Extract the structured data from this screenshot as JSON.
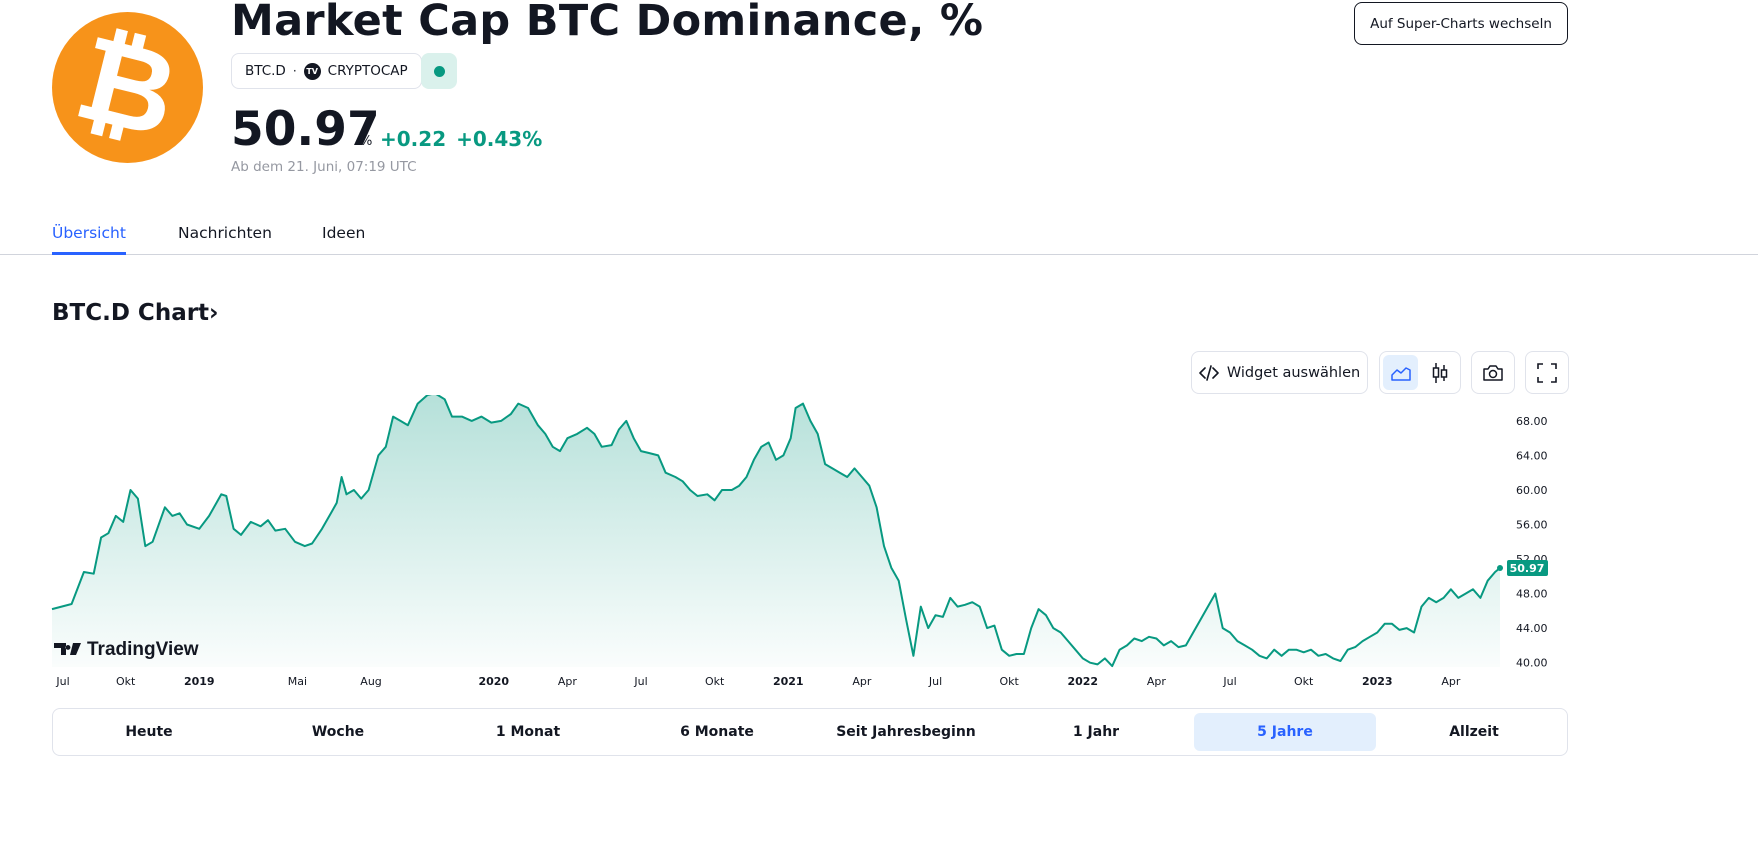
{
  "header": {
    "logo_glyph": "₿",
    "title": "Market Cap BTC Dominance, %",
    "symbol": "BTC.D",
    "separator": "·",
    "exchange_logo": "TV",
    "exchange": "CRYPTOCAP",
    "price": "50.97",
    "unit": "%",
    "change_abs": "+0.22",
    "change_pct": "+0.43%",
    "as_of": "Ab dem 21. Juni, 07:19 UTC",
    "super_charts_label": "Auf Super-Charts wechseln"
  },
  "tabs": [
    {
      "label": "Übersicht",
      "active": true
    },
    {
      "label": "Nachrichten",
      "active": false
    },
    {
      "label": "Ideen",
      "active": false
    }
  ],
  "chart_section": {
    "heading": "BTC.D Chart›",
    "widget_label": "Widget auswählen",
    "icons": [
      "code-icon",
      "area-chart-icon",
      "candlestick-icon",
      "camera-icon",
      "fullscreen-icon"
    ]
  },
  "chart_data": {
    "type": "area",
    "title": "",
    "xlabel": "",
    "ylabel": "",
    "ylim": [
      39.5,
      71
    ],
    "grid": false,
    "brand_logo_text": "TradingView",
    "line_color": "#089981",
    "fill_color": "#089981",
    "last_value_label": "50.97",
    "y_ticks": [
      "68.00",
      "64.00",
      "60.00",
      "56.00",
      "52.00",
      "48.00",
      "44.00",
      "40.00"
    ],
    "x_ticks": [
      "Jul",
      "Okt",
      "2019",
      "Mai",
      "Aug",
      "2020",
      "Apr",
      "Jul",
      "Okt",
      "2021",
      "Apr",
      "Jul",
      "Okt",
      "2022",
      "Apr",
      "Jul",
      "Okt",
      "2023",
      "Apr"
    ],
    "x_tick_months": [
      0,
      3,
      6,
      10,
      13,
      18,
      21,
      24,
      27,
      30,
      33,
      36,
      39,
      42,
      45,
      48,
      51,
      54,
      57
    ],
    "x_unit": "months since Jul 2018",
    "series": [
      {
        "values": [
          [
            0,
            46.2
          ],
          [
            0.8,
            46.8
          ],
          [
            1.3,
            50.5
          ],
          [
            1.7,
            50.3
          ],
          [
            2.0,
            54.5
          ],
          [
            2.3,
            55.0
          ],
          [
            2.6,
            57.0
          ],
          [
            2.9,
            56.3
          ],
          [
            3.2,
            60.0
          ],
          [
            3.5,
            59.0
          ],
          [
            3.8,
            53.5
          ],
          [
            4.1,
            54.0
          ],
          [
            4.6,
            58.0
          ],
          [
            4.9,
            57.0
          ],
          [
            5.2,
            57.3
          ],
          [
            5.5,
            56.0
          ],
          [
            6.0,
            55.5
          ],
          [
            6.4,
            57.0
          ],
          [
            6.9,
            59.5
          ],
          [
            7.1,
            59.3
          ],
          [
            7.4,
            55.5
          ],
          [
            7.7,
            54.8
          ],
          [
            8.1,
            56.3
          ],
          [
            8.5,
            55.8
          ],
          [
            8.8,
            56.5
          ],
          [
            9.1,
            55.3
          ],
          [
            9.5,
            55.5
          ],
          [
            9.9,
            54.0
          ],
          [
            10.3,
            53.5
          ],
          [
            10.6,
            53.8
          ],
          [
            11.0,
            55.5
          ],
          [
            11.4,
            57.5
          ],
          [
            11.6,
            58.5
          ],
          [
            11.8,
            61.5
          ],
          [
            12.0,
            59.5
          ],
          [
            12.3,
            60.0
          ],
          [
            12.6,
            59.0
          ],
          [
            12.9,
            60.0
          ],
          [
            13.3,
            64.0
          ],
          [
            13.6,
            65.0
          ],
          [
            13.9,
            68.5
          ],
          [
            14.2,
            68.0
          ],
          [
            14.5,
            67.5
          ],
          [
            14.9,
            70.0
          ],
          [
            15.3,
            71.0
          ],
          [
            15.6,
            71.2
          ],
          [
            16.0,
            70.5
          ],
          [
            16.3,
            68.5
          ],
          [
            16.7,
            68.5
          ],
          [
            17.1,
            68.0
          ],
          [
            17.5,
            68.5
          ],
          [
            17.9,
            67.8
          ],
          [
            18.3,
            68.0
          ],
          [
            18.7,
            68.8
          ],
          [
            19.0,
            70.0
          ],
          [
            19.4,
            69.5
          ],
          [
            19.8,
            67.5
          ],
          [
            20.1,
            66.5
          ],
          [
            20.4,
            65.0
          ],
          [
            20.7,
            64.5
          ],
          [
            21.0,
            66.0
          ],
          [
            21.4,
            66.5
          ],
          [
            21.8,
            67.2
          ],
          [
            22.1,
            66.5
          ],
          [
            22.4,
            65.0
          ],
          [
            22.8,
            65.2
          ],
          [
            23.1,
            67.0
          ],
          [
            23.4,
            68.0
          ],
          [
            23.7,
            66.0
          ],
          [
            24.0,
            64.5
          ],
          [
            24.3,
            64.3
          ],
          [
            24.7,
            64.0
          ],
          [
            25.0,
            62.0
          ],
          [
            25.4,
            61.5
          ],
          [
            25.7,
            61.0
          ],
          [
            26.0,
            60.0
          ],
          [
            26.3,
            59.3
          ],
          [
            26.7,
            59.5
          ],
          [
            27.0,
            58.8
          ],
          [
            27.3,
            60.0
          ],
          [
            27.7,
            60.0
          ],
          [
            28.0,
            60.5
          ],
          [
            28.3,
            61.5
          ],
          [
            28.6,
            63.5
          ],
          [
            28.9,
            65.0
          ],
          [
            29.2,
            65.5
          ],
          [
            29.5,
            63.5
          ],
          [
            29.8,
            64.0
          ],
          [
            30.1,
            66.0
          ],
          [
            30.3,
            69.5
          ],
          [
            30.6,
            70.0
          ],
          [
            30.9,
            68.0
          ],
          [
            31.2,
            66.5
          ],
          [
            31.5,
            63.0
          ],
          [
            31.8,
            62.5
          ],
          [
            32.1,
            62.0
          ],
          [
            32.4,
            61.5
          ],
          [
            32.7,
            62.5
          ],
          [
            33.0,
            61.5
          ],
          [
            33.3,
            60.5
          ],
          [
            33.6,
            58.0
          ],
          [
            33.9,
            53.5
          ],
          [
            34.2,
            51.0
          ],
          [
            34.5,
            49.5
          ],
          [
            34.8,
            45.0
          ],
          [
            35.1,
            40.8
          ],
          [
            35.4,
            46.5
          ],
          [
            35.7,
            44.0
          ],
          [
            36.0,
            45.5
          ],
          [
            36.3,
            45.3
          ],
          [
            36.6,
            47.5
          ],
          [
            36.9,
            46.5
          ],
          [
            37.2,
            46.7
          ],
          [
            37.5,
            47.0
          ],
          [
            37.8,
            46.5
          ],
          [
            38.1,
            44.0
          ],
          [
            38.4,
            44.3
          ],
          [
            38.7,
            41.5
          ],
          [
            39.0,
            40.8
          ],
          [
            39.3,
            41.0
          ],
          [
            39.6,
            41.0
          ],
          [
            39.9,
            44.0
          ],
          [
            40.2,
            46.2
          ],
          [
            40.5,
            45.5
          ],
          [
            40.8,
            44.0
          ],
          [
            41.1,
            43.5
          ],
          [
            41.4,
            42.5
          ],
          [
            41.7,
            41.5
          ],
          [
            42.0,
            40.5
          ],
          [
            42.3,
            40.0
          ],
          [
            42.6,
            39.8
          ],
          [
            42.9,
            40.5
          ],
          [
            43.2,
            39.6
          ],
          [
            43.5,
            41.5
          ],
          [
            43.8,
            42.0
          ],
          [
            44.1,
            42.8
          ],
          [
            44.4,
            42.5
          ],
          [
            44.7,
            43.0
          ],
          [
            45.0,
            42.8
          ],
          [
            45.3,
            42.0
          ],
          [
            45.6,
            42.5
          ],
          [
            45.9,
            41.8
          ],
          [
            46.2,
            42.0
          ],
          [
            46.5,
            43.5
          ],
          [
            46.8,
            45.0
          ],
          [
            47.1,
            46.5
          ],
          [
            47.4,
            48.0
          ],
          [
            47.7,
            44.0
          ],
          [
            48.0,
            43.5
          ],
          [
            48.3,
            42.5
          ],
          [
            48.6,
            42.0
          ],
          [
            48.9,
            41.5
          ],
          [
            49.2,
            40.8
          ],
          [
            49.5,
            40.5
          ],
          [
            49.8,
            41.5
          ],
          [
            50.1,
            40.8
          ],
          [
            50.4,
            41.5
          ],
          [
            50.7,
            41.5
          ],
          [
            51.0,
            41.2
          ],
          [
            51.3,
            41.5
          ],
          [
            51.6,
            40.8
          ],
          [
            51.9,
            41.0
          ],
          [
            52.2,
            40.5
          ],
          [
            52.5,
            40.2
          ],
          [
            52.8,
            41.5
          ],
          [
            53.1,
            41.8
          ],
          [
            53.4,
            42.5
          ],
          [
            53.7,
            43.0
          ],
          [
            54.0,
            43.5
          ],
          [
            54.3,
            44.5
          ],
          [
            54.6,
            44.5
          ],
          [
            54.9,
            43.8
          ],
          [
            55.2,
            44.0
          ],
          [
            55.5,
            43.5
          ],
          [
            55.8,
            46.5
          ],
          [
            56.1,
            47.5
          ],
          [
            56.4,
            47.0
          ],
          [
            56.7,
            47.5
          ],
          [
            57.0,
            48.5
          ],
          [
            57.3,
            47.5
          ],
          [
            57.6,
            48.0
          ],
          [
            57.9,
            48.5
          ],
          [
            58.2,
            47.5
          ],
          [
            58.5,
            49.5
          ],
          [
            58.8,
            50.5
          ],
          [
            59.0,
            50.97
          ]
        ]
      }
    ]
  },
  "time_ranges": [
    {
      "label": "Heute",
      "active": false
    },
    {
      "label": "Woche",
      "active": false
    },
    {
      "label": "1 Monat",
      "active": false
    },
    {
      "label": "6 Monate",
      "active": false
    },
    {
      "label": "Seit Jahresbeginn",
      "active": false
    },
    {
      "label": "1 Jahr",
      "active": false
    },
    {
      "label": "5 Jahre",
      "active": true
    },
    {
      "label": "Allzeit",
      "active": false
    }
  ]
}
